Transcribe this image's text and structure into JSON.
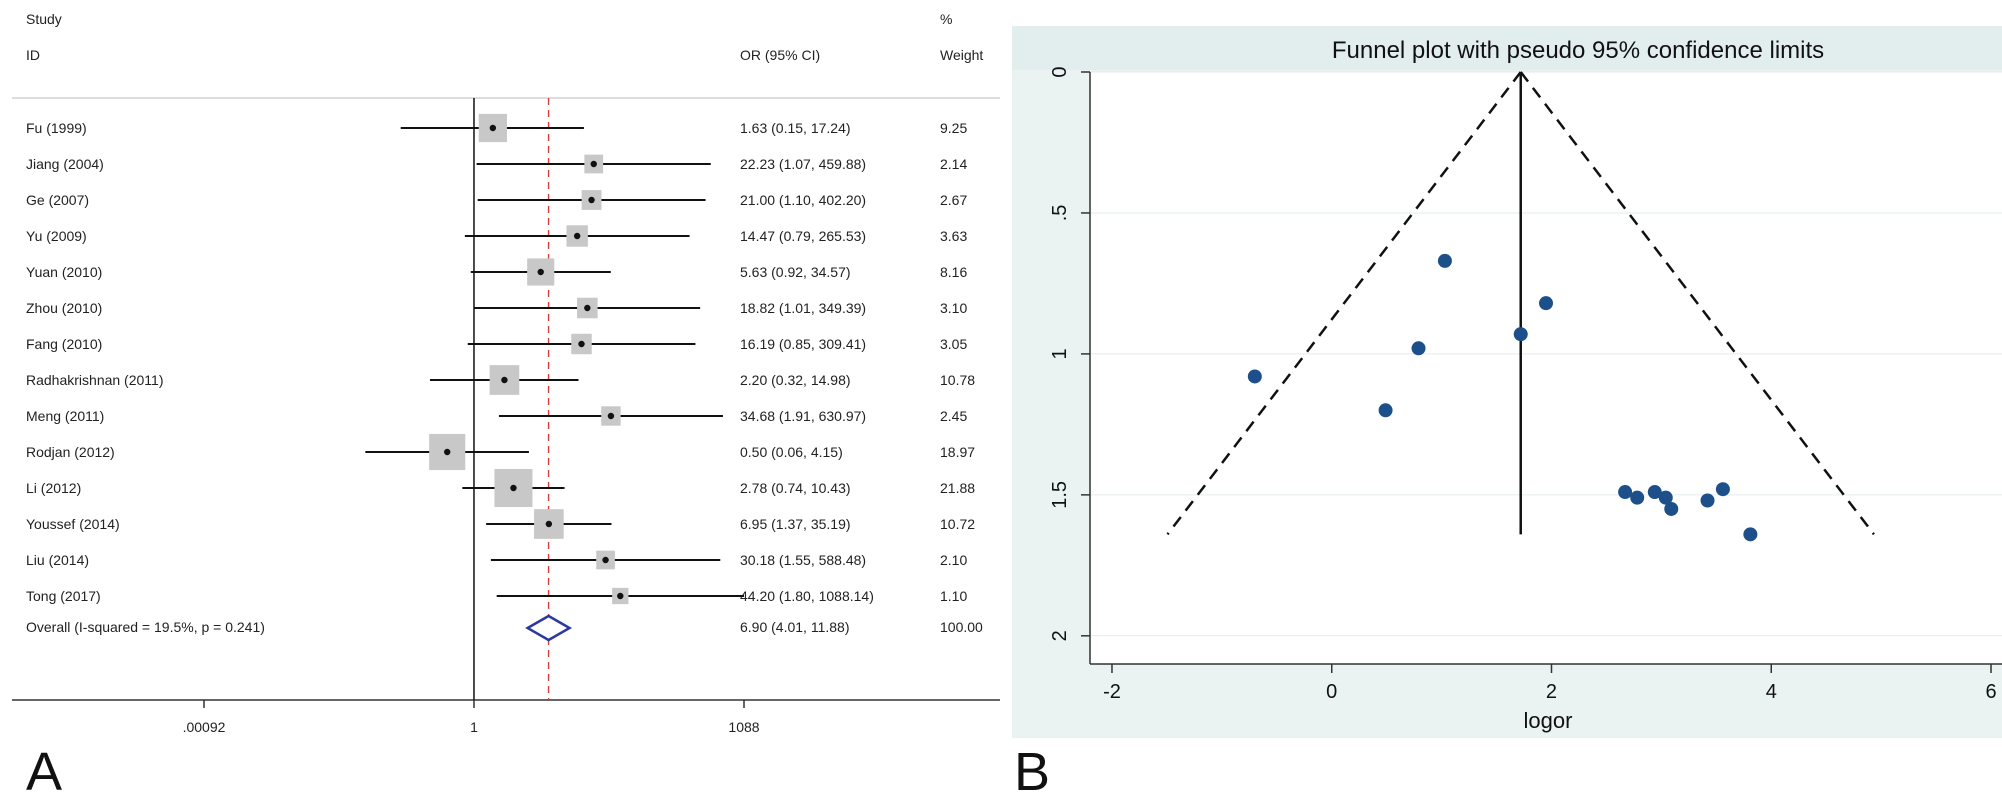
{
  "panels": {
    "a_label": "A",
    "b_label": "B"
  },
  "chart_data": [
    {
      "type": "forest",
      "headers": {
        "study": "Study",
        "id": "ID",
        "or_ci": "OR (95% CI)",
        "pct": "%",
        "weight": "Weight"
      },
      "x_ticks": [
        ".00092",
        "1",
        "1088"
      ],
      "xlim": [
        0.00092,
        1088
      ],
      "x_scale": "log",
      "null_value": 1,
      "studies": [
        {
          "id": "Fu (1999)",
          "or": 1.63,
          "lower": 0.15,
          "upper": 17.24,
          "or_ci": "1.63 (0.15, 17.24)",
          "weight": "9.25",
          "w": 9.25
        },
        {
          "id": "Jiang (2004)",
          "or": 22.23,
          "lower": 1.07,
          "upper": 459.88,
          "or_ci": "22.23 (1.07, 459.88)",
          "weight": "2.14",
          "w": 2.14
        },
        {
          "id": "Ge (2007)",
          "or": 21.0,
          "lower": 1.1,
          "upper": 402.2,
          "or_ci": "21.00 (1.10, 402.20)",
          "weight": "2.67",
          "w": 2.67
        },
        {
          "id": "Yu (2009)",
          "or": 14.47,
          "lower": 0.79,
          "upper": 265.53,
          "or_ci": "14.47 (0.79, 265.53)",
          "weight": "3.63",
          "w": 3.63
        },
        {
          "id": "Yuan (2010)",
          "or": 5.63,
          "lower": 0.92,
          "upper": 34.57,
          "or_ci": "5.63 (0.92, 34.57)",
          "weight": "8.16",
          "w": 8.16
        },
        {
          "id": "Zhou (2010)",
          "or": 18.82,
          "lower": 1.01,
          "upper": 349.39,
          "or_ci": "18.82 (1.01, 349.39)",
          "weight": "3.10",
          "w": 3.1
        },
        {
          "id": "Fang (2010)",
          "or": 16.19,
          "lower": 0.85,
          "upper": 309.41,
          "or_ci": "16.19 (0.85, 309.41)",
          "weight": "3.05",
          "w": 3.05
        },
        {
          "id": "Radhakrishnan (2011)",
          "or": 2.2,
          "lower": 0.32,
          "upper": 14.98,
          "or_ci": "2.20 (0.32, 14.98)",
          "weight": "10.78",
          "w": 10.78
        },
        {
          "id": "Meng (2011)",
          "or": 34.68,
          "lower": 1.91,
          "upper": 630.97,
          "or_ci": "34.68 (1.91, 630.97)",
          "weight": "2.45",
          "w": 2.45
        },
        {
          "id": "Rodjan (2012)",
          "or": 0.5,
          "lower": 0.06,
          "upper": 4.15,
          "or_ci": "0.50 (0.06, 4.15)",
          "weight": "18.97",
          "w": 18.97
        },
        {
          "id": "Li (2012)",
          "or": 2.78,
          "lower": 0.74,
          "upper": 10.43,
          "or_ci": "2.78 (0.74, 10.43)",
          "weight": "21.88",
          "w": 21.88
        },
        {
          "id": "Youssef (2014)",
          "or": 6.95,
          "lower": 1.37,
          "upper": 35.19,
          "or_ci": "6.95 (1.37, 35.19)",
          "weight": "10.72",
          "w": 10.72
        },
        {
          "id": "Liu (2014)",
          "or": 30.18,
          "lower": 1.55,
          "upper": 588.48,
          "or_ci": "30.18 (1.55, 588.48)",
          "weight": "2.10",
          "w": 2.1
        },
        {
          "id": "Tong (2017)",
          "or": 44.2,
          "lower": 1.8,
          "upper": 1088.14,
          "or_ci": "44.20 (1.80, 1088.14)",
          "weight": "1.10",
          "w": 1.1
        }
      ],
      "overall": {
        "id": "Overall  (I-squared = 19.5%, p = 0.241)",
        "or": 6.9,
        "lower": 4.01,
        "upper": 11.88,
        "or_ci": "6.90 (4.01, 11.88)",
        "weight": "100.00"
      },
      "colors": {
        "diamond": "#2a3a9e",
        "ref_line": "#d04040",
        "box": "#c8c8c8"
      }
    },
    {
      "type": "scatter",
      "title": "Funnel plot with pseudo 95% confidence limits",
      "xlabel": "logor",
      "ylabel": "",
      "xlim": [
        -2.2,
        6.1
      ],
      "ylim": [
        0,
        2.1
      ],
      "y_inverted": true,
      "x_ticks": [
        "-2",
        "0",
        "2",
        "4",
        "6"
      ],
      "y_ticks": [
        "0",
        ".5",
        "1",
        "1.5",
        "2"
      ],
      "center_logor": 1.72,
      "funnel_bottom_se": 1.64,
      "points": [
        {
          "x": 1.03,
          "y": 0.67
        },
        {
          "x": 1.95,
          "y": 0.82
        },
        {
          "x": 1.72,
          "y": 0.93
        },
        {
          "x": 0.79,
          "y": 0.98
        },
        {
          "x": -0.7,
          "y": 1.08
        },
        {
          "x": 0.49,
          "y": 1.2
        },
        {
          "x": 2.67,
          "y": 1.49
        },
        {
          "x": 2.78,
          "y": 1.51
        },
        {
          "x": 2.94,
          "y": 1.49
        },
        {
          "x": 3.04,
          "y": 1.51
        },
        {
          "x": 3.09,
          "y": 1.55
        },
        {
          "x": 3.42,
          "y": 1.52
        },
        {
          "x": 3.56,
          "y": 1.48
        },
        {
          "x": 3.81,
          "y": 1.64
        }
      ],
      "colors": {
        "point": "#1d4f8a",
        "title_bg": "#e6f0f0",
        "grid": "#e2ecec"
      }
    }
  ]
}
